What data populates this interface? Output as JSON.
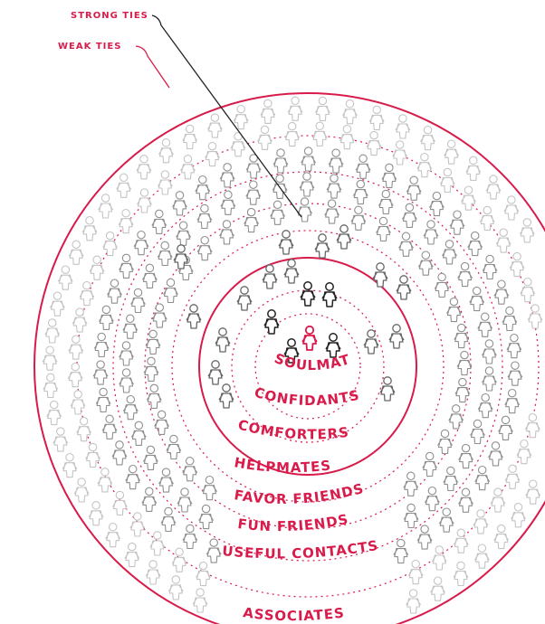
{
  "callouts": {
    "strong_ties": "STRONG TIES",
    "weak_ties": "WEAK TIES"
  },
  "rings": {
    "soulmates": "SOULMATES",
    "confidants": "CONFIDANTS",
    "comforters": "COMFORTERS",
    "helpmates": "HELPMATES",
    "favor_friends": "FAVOR FRIENDS",
    "fun_friends": "FUN FRIENDS",
    "useful_contacts": "USEFUL CONTACTS",
    "associates": "ASSOCIATES"
  },
  "colors": {
    "accent": "#d81b4a",
    "center_person": "#d81b4a",
    "inner_people": "#222222",
    "strong_people": "#666666",
    "middle_people": "#8f8f8f",
    "outer_people": "#c4c4c4"
  },
  "icons": {
    "person": "person-icon"
  }
}
